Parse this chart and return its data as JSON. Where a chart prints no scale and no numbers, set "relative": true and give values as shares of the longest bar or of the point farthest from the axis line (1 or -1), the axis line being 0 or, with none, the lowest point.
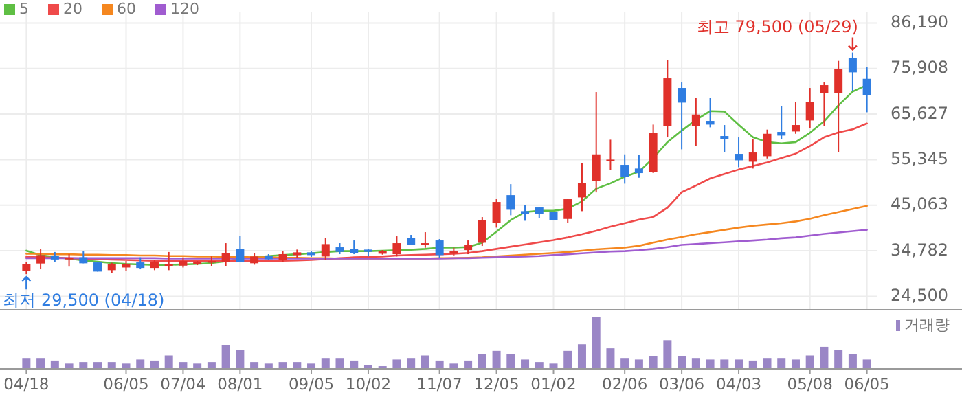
{
  "chart_data": [
    {
      "type": "candlestick",
      "categories": [
        "04/18",
        null,
        null,
        null,
        null,
        null,
        null,
        "06/05",
        null,
        null,
        null,
        "07/04",
        null,
        null,
        null,
        "08/01",
        null,
        null,
        null,
        null,
        "09/05",
        null,
        null,
        null,
        "10/02",
        null,
        null,
        null,
        null,
        "11/07",
        null,
        null,
        null,
        "12/05",
        null,
        null,
        null,
        "01/02",
        null,
        null,
        null,
        null,
        "02/06",
        null,
        null,
        null,
        "03/06",
        null,
        null,
        null,
        "04/03",
        null,
        null,
        null,
        null,
        "05/08",
        null,
        null,
        null,
        "06/05"
      ],
      "ohlc": [
        [
          30300,
          32300,
          29500,
          31800
        ],
        [
          31900,
          35100,
          30600,
          33800
        ],
        [
          33700,
          34500,
          32250,
          32800
        ],
        [
          32900,
          34000,
          31200,
          33200
        ],
        [
          33300,
          34630,
          31950,
          31950
        ],
        [
          32150,
          32150,
          30080,
          30080
        ],
        [
          30400,
          32050,
          29800,
          31800
        ],
        [
          31000,
          32460,
          30190,
          31840
        ],
        [
          32150,
          33290,
          30600,
          30900
        ],
        [
          30900,
          32770,
          30400,
          32360
        ],
        [
          31320,
          34500,
          30400,
          31840
        ],
        [
          31420,
          33300,
          31000,
          32460
        ],
        [
          31730,
          32460,
          31530,
          32360
        ],
        [
          32250,
          33500,
          31320,
          32460
        ],
        [
          32250,
          36490,
          31320,
          34320
        ],
        [
          35250,
          38140,
          32250,
          32250
        ],
        [
          31950,
          34320,
          31630,
          33490
        ],
        [
          33700,
          34010,
          32660,
          32870
        ],
        [
          32770,
          34630,
          32250,
          34010
        ],
        [
          33800,
          35040,
          33180,
          34420
        ],
        [
          34420,
          34630,
          33390,
          33800
        ],
        [
          33490,
          37620,
          32660,
          36280
        ],
        [
          35560,
          36490,
          34010,
          34530
        ],
        [
          35250,
          37110,
          34010,
          34320
        ],
        [
          35040,
          35250,
          33490,
          34530
        ],
        [
          34110,
          34940,
          33910,
          34730
        ],
        [
          34010,
          38040,
          33490,
          36490
        ],
        [
          37730,
          38350,
          36180,
          36180
        ],
        [
          36290,
          38970,
          35460,
          36490
        ],
        [
          37110,
          37420,
          33180,
          33800
        ],
        [
          34110,
          35460,
          33700,
          34630
        ],
        [
          34940,
          37110,
          34010,
          36080
        ],
        [
          36590,
          42380,
          35870,
          41760
        ],
        [
          41140,
          46410,
          40000,
          45790
        ],
        [
          47330,
          49810,
          42790,
          44030
        ],
        [
          43720,
          45170,
          41550,
          43100
        ],
        [
          44550,
          44550,
          42170,
          43100
        ],
        [
          43520,
          43520,
          41650,
          41760
        ],
        [
          41960,
          46410,
          41140,
          46410
        ],
        [
          46820,
          54570,
          43720,
          50020
        ],
        [
          50540,
          70590,
          47950,
          56530
        ],
        [
          55190,
          59840,
          53020,
          55340
        ],
        [
          54160,
          56530,
          49920,
          51470
        ],
        [
          53330,
          56430,
          51260,
          52300
        ],
        [
          52500,
          63250,
          52300,
          61390
        ],
        [
          62940,
          77820,
          60360,
          73690
        ],
        [
          71520,
          72760,
          57670,
          68210
        ],
        [
          62940,
          69350,
          58500,
          65520
        ],
        [
          64080,
          69350,
          62630,
          63250
        ],
        [
          60670,
          63150,
          57050,
          59940
        ],
        [
          56640,
          60360,
          53640,
          55190
        ],
        [
          54880,
          60050,
          53330,
          56950
        ],
        [
          56120,
          62120,
          55600,
          61180
        ],
        [
          61600,
          67380,
          59940,
          60770
        ],
        [
          61700,
          68420,
          61180,
          63150
        ],
        [
          64180,
          71520,
          62430,
          68420
        ],
        [
          70380,
          72760,
          62940,
          72140
        ],
        [
          70380,
          77620,
          57050,
          75750
        ],
        [
          78340,
          79500,
          70900,
          75030
        ],
        [
          73580,
          76170,
          66040,
          69860
        ]
      ],
      "colors": [
        "#e0302a",
        "#e0302a",
        "#2f7de1",
        "#e0302a",
        "#2f7de1",
        "#2f7de1",
        "#e0302a",
        "#e0302a",
        "#2f7de1",
        "#e0302a",
        "#e0302a",
        "#e0302a",
        "#e0302a",
        "#e0302a",
        "#e0302a",
        "#2f7de1",
        "#e0302a",
        "#2f7de1",
        "#e0302a",
        "#e0302a",
        "#2f7de1",
        "#e0302a",
        "#2f7de1",
        "#2f7de1",
        "#2f7de1",
        "#e0302a",
        "#e0302a",
        "#2f7de1",
        "#e0302a",
        "#2f7de1",
        "#e0302a",
        "#e0302a",
        "#e0302a",
        "#e0302a",
        "#2f7de1",
        "#2f7de1",
        "#2f7de1",
        "#2f7de1",
        "#e0302a",
        "#e0302a",
        "#e0302a",
        "#e0302a",
        "#2f7de1",
        "#2f7de1",
        "#e0302a",
        "#e0302a",
        "#2f7de1",
        "#e0302a",
        "#2f7de1",
        "#2f7de1",
        "#2f7de1",
        "#e0302a",
        "#e0302a",
        "#2f7de1",
        "#e0302a",
        "#e0302a",
        "#e0302a",
        "#e0302a",
        "#2f7de1",
        "#2f7de1"
      ],
      "series": [
        {
          "name": "5",
          "type": "line",
          "color": "#5fbf44",
          "values": [
            34800,
            33800,
            33300,
            33000,
            32600,
            32300,
            32000,
            31800,
            31700,
            31600,
            31600,
            31700,
            31800,
            32000,
            32400,
            33000,
            33300,
            33600,
            33800,
            34000,
            34200,
            34500,
            34700,
            34700,
            34700,
            34800,
            34900,
            35000,
            35200,
            35500,
            35500,
            35600,
            36600,
            39100,
            41700,
            43500,
            43800,
            43800,
            44300,
            45900,
            48800,
            50000,
            51500,
            52600,
            55700,
            59300,
            61900,
            64300,
            66300,
            66200,
            63200,
            60400,
            59300,
            59000,
            59300,
            61400,
            64000,
            67600,
            70700,
            72200
          ]
        },
        {
          "name": "20",
          "type": "line",
          "color": "#ef4a4a",
          "values": [
            33400,
            33300,
            33200,
            33100,
            33000,
            32900,
            32800,
            32700,
            32600,
            32500,
            32500,
            32500,
            32500,
            32500,
            32500,
            32500,
            32500,
            32500,
            32500,
            32600,
            32700,
            32900,
            33100,
            33300,
            33400,
            33500,
            33700,
            33800,
            33900,
            34000,
            34100,
            34300,
            34700,
            35200,
            35700,
            36200,
            36700,
            37200,
            37800,
            38500,
            39300,
            40200,
            41000,
            41800,
            42400,
            44500,
            48000,
            49500,
            51100,
            52100,
            53100,
            53900,
            54700,
            55700,
            56700,
            58400,
            60400,
            61500,
            62200,
            63500
          ]
        },
        {
          "name": "60",
          "type": "line",
          "color": "#f5871f",
          "values": [
            34100,
            34100,
            34000,
            34000,
            33900,
            33900,
            33800,
            33800,
            33700,
            33700,
            33600,
            33600,
            33500,
            33500,
            33400,
            33400,
            33300,
            33300,
            33200,
            33200,
            33100,
            33100,
            33000,
            33000,
            33000,
            33000,
            33000,
            33000,
            33000,
            33100,
            33100,
            33200,
            33300,
            33500,
            33700,
            33900,
            34100,
            34300,
            34500,
            34800,
            35100,
            35300,
            35500,
            35900,
            36600,
            37300,
            37900,
            38500,
            39000,
            39500,
            40000,
            40400,
            40700,
            41000,
            41400,
            42000,
            42800,
            43500,
            44200,
            44900
          ]
        },
        {
          "name": "120",
          "type": "line",
          "color": "#a05cd0",
          "values": [
            33100,
            33100,
            33100,
            33100,
            33100,
            33100,
            33100,
            33100,
            33100,
            33100,
            33000,
            33000,
            33000,
            33000,
            33000,
            33000,
            33000,
            33000,
            33000,
            33000,
            33000,
            33000,
            33000,
            33000,
            33000,
            33000,
            33000,
            33000,
            33000,
            33000,
            33100,
            33100,
            33200,
            33300,
            33400,
            33500,
            33600,
            33800,
            34000,
            34200,
            34400,
            34600,
            34700,
            34900,
            35200,
            35600,
            36100,
            36300,
            36500,
            36700,
            36900,
            37100,
            37300,
            37600,
            37800,
            38200,
            38600,
            38900,
            39200,
            39500
          ]
        }
      ],
      "ylim": [
        24500,
        86190
      ],
      "yticks": [
        {
          "value": 24500,
          "label": "24,500"
        },
        {
          "value": 34782,
          "label": "34,782"
        },
        {
          "value": 45063,
          "label": "45,063"
        },
        {
          "value": 55345,
          "label": "55,345"
        },
        {
          "value": 65627,
          "label": "65,627"
        },
        {
          "value": 75908,
          "label": "75,908"
        },
        {
          "value": 86190,
          "label": "86,190"
        }
      ],
      "grid": true,
      "legend": "top left",
      "tick_labels": "y",
      "annotations": [
        {
          "text": "최저 29,500 (04/18)",
          "x": "04/18",
          "y": 29500
        },
        "최고 79,500 (05/29)"
      ]
    },
    {
      "type": "bar",
      "categories": [
        "04/18",
        null,
        null,
        null,
        null,
        null,
        null,
        "06/05",
        null,
        null,
        null,
        "07/04",
        null,
        null,
        null,
        "08/01",
        null,
        null,
        null,
        null,
        "09/05",
        null,
        null,
        null,
        "10/02",
        null,
        null,
        null,
        null,
        "11/07",
        null,
        null,
        null,
        "12/05",
        null,
        null,
        null,
        "01/02",
        null,
        null,
        null,
        null,
        "02/06",
        null,
        null,
        null,
        "03/06",
        null,
        null,
        null,
        "04/03",
        null,
        null,
        null,
        null,
        "05/08",
        null,
        null,
        null,
        "06/05"
      ],
      "series": [
        {
          "name": "거래량",
          "color": "#9a86c6",
          "values": [
            0.2,
            0.2,
            0.15,
            0.09,
            0.12,
            0.12,
            0.12,
            0.09,
            0.17,
            0.15,
            0.25,
            0.12,
            0.09,
            0.12,
            0.45,
            0.36,
            0.12,
            0.09,
            0.12,
            0.12,
            0.09,
            0.2,
            0.2,
            0.15,
            0.06,
            0.04,
            0.17,
            0.2,
            0.25,
            0.15,
            0.09,
            0.15,
            0.28,
            0.34,
            0.28,
            0.17,
            0.12,
            0.09,
            0.34,
            0.47,
            1,
            0.39,
            0.2,
            0.17,
            0.23,
            0.55,
            0.23,
            0.2,
            0.17,
            0.17,
            0.17,
            0.15,
            0.2,
            0.2,
            0.17,
            0.25,
            0.42,
            0.36,
            0.28,
            0.17
          ]
        }
      ],
      "relative": true,
      "legend": "top right",
      "tick_labels": "x"
    }
  ]
}
